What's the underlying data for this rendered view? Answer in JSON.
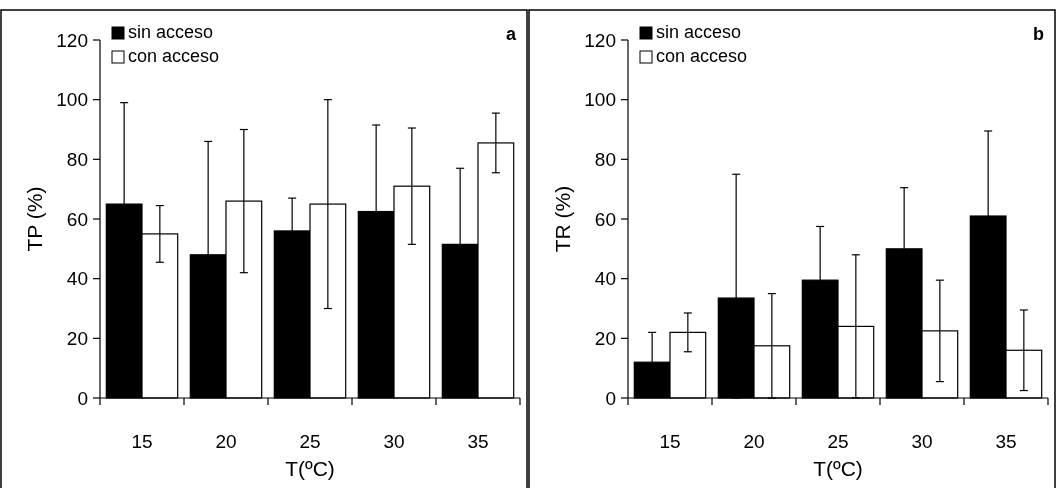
{
  "chart_data": [
    {
      "type": "bar",
      "annotations": [
        "a"
      ],
      "xlabel": "T(ºC)",
      "ylabel": "TP (%)",
      "categories": [
        "15",
        "20",
        "25",
        "30",
        "35"
      ],
      "ylim": [
        0,
        120
      ],
      "yticks": [
        0,
        20,
        40,
        60,
        80,
        100,
        120
      ],
      "legend": "top left",
      "grid": false,
      "series": [
        {
          "name": "sin acceso",
          "color": "#000000",
          "values": [
            65,
            48,
            56,
            62.5,
            51.5
          ],
          "errors": [
            34,
            38,
            11,
            29,
            25.5
          ]
        },
        {
          "name": "con acceso",
          "color": "#ffffff",
          "values": [
            55,
            66,
            65,
            71,
            85.5
          ],
          "errors": [
            9.5,
            24,
            35,
            19.5,
            10
          ]
        }
      ]
    },
    {
      "type": "bar",
      "annotations": [
        "b"
      ],
      "xlabel": "T(ºC)",
      "ylabel": "TR (%)",
      "categories": [
        "15",
        "20",
        "25",
        "30",
        "35"
      ],
      "ylim": [
        0,
        120
      ],
      "yticks": [
        0,
        20,
        40,
        60,
        80,
        100,
        120
      ],
      "legend": "top left",
      "grid": false,
      "series": [
        {
          "name": "sin acceso",
          "color": "#000000",
          "values": [
            12,
            33.5,
            39.5,
            50,
            61
          ],
          "errors": [
            10,
            [
              0,
              75
            ],
            18,
            20.5,
            28.5
          ]
        },
        {
          "name": "con acceso",
          "color": "#ffffff",
          "values": [
            22,
            17.5,
            24,
            22.5,
            16
          ],
          "errors": [
            6.5,
            17.5,
            24,
            17,
            13.5
          ]
        }
      ]
    }
  ]
}
